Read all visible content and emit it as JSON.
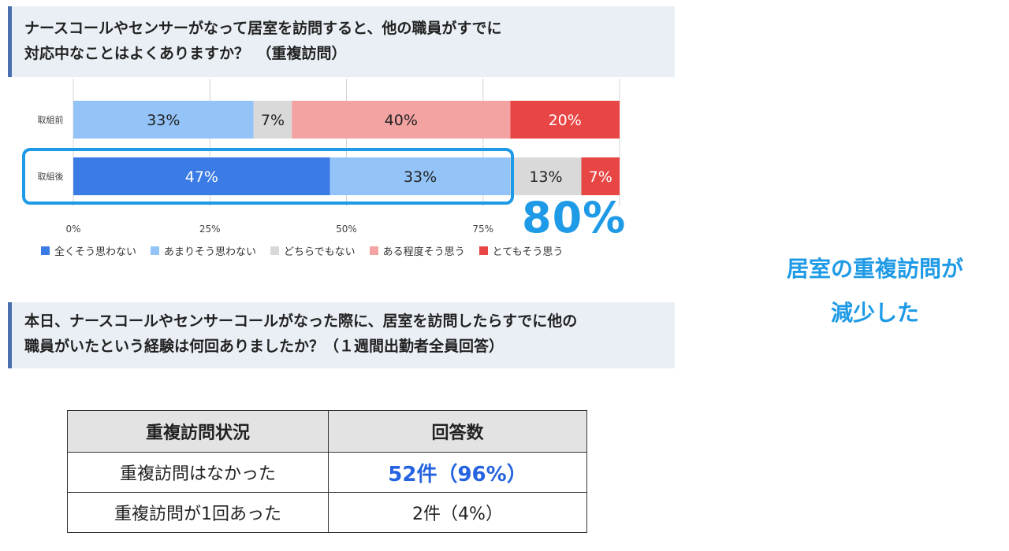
{
  "question1": {
    "line1": "ナースコールやセンサーがなって居室を訪問すると、他の職員がすでに",
    "line2": "対応中なことはよくありますか？　（重複訪問）"
  },
  "chart_data": {
    "type": "bar",
    "orientation": "horizontal",
    "stacked": true,
    "categories": [
      "取組前",
      "取組後"
    ],
    "series": [
      {
        "name": "全くそう思わない",
        "values": [
          0,
          47
        ],
        "labels": [
          "",
          "47%"
        ],
        "color": "#3b7be6",
        "text_color": "#ffffff"
      },
      {
        "name": "あまりそう思わない",
        "values": [
          33,
          33
        ],
        "labels": [
          "33%",
          "33%"
        ],
        "color": "#93c3f7",
        "text_color": "#222222"
      },
      {
        "name": "どちらでもない",
        "values": [
          7,
          13
        ],
        "labels": [
          "7%",
          "13%"
        ],
        "color": "#d9d9d9",
        "text_color": "#222222"
      },
      {
        "name": "ある程度そう思う",
        "values": [
          40,
          0
        ],
        "labels": [
          "40%",
          ""
        ],
        "color": "#f4a3a3",
        "text_color": "#222222"
      },
      {
        "name": "とてもそう思う",
        "values": [
          20,
          7
        ],
        "labels": [
          "20%",
          "7%"
        ],
        "color": "#e84545",
        "text_color": "#ffffff"
      }
    ],
    "xlim": [
      0,
      100
    ],
    "xticks": [
      "0%",
      "25%",
      "50%",
      "75%"
    ],
    "legend_position": "bottom",
    "grid": true,
    "highlight": "80%"
  },
  "conclusion": {
    "line1": "居室の重複訪問が",
    "line2": "減少した"
  },
  "question2": {
    "line1": "本日、ナースコールやセンサーコールがなった際に、居室を訪問したらすでに他の",
    "line2": "職員がいたという経験は何回ありましたか？（１週間出勤者全員回答）"
  },
  "table": {
    "headers": [
      "重複訪問状況",
      "回答数"
    ],
    "rows": [
      [
        "重複訪問はなかった",
        "52件（96%）"
      ],
      [
        "重複訪問が1回あった",
        "2件（4%）"
      ]
    ]
  }
}
